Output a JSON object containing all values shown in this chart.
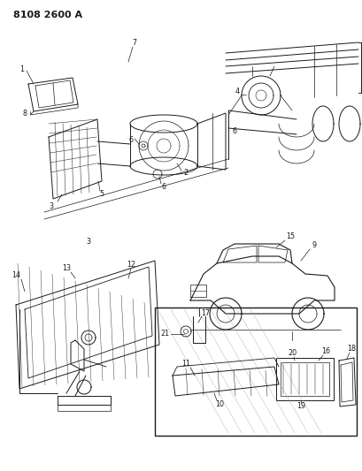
{
  "title": "8108 2600 A",
  "bg_color": "#ffffff",
  "line_color": "#1a1a1a",
  "fig_width": 4.1,
  "fig_height": 5.33,
  "dpi": 100,
  "label_fontsize": 5.8,
  "title_fontsize": 8.0
}
